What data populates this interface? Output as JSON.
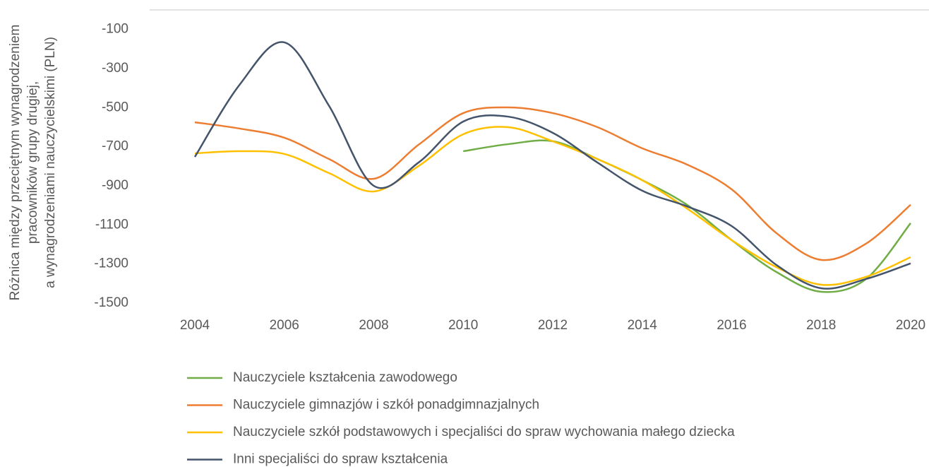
{
  "chart_data": {
    "type": "line",
    "y_label": [
      "Różnica między przeciętnym wynagrodzeniem",
      "pracowników grupy drugiej,",
      "a wynagrodzeniami nauczycielskimi (PLN)"
    ],
    "x": [
      2004,
      2005,
      2006,
      2007,
      2008,
      2009,
      2010,
      2011,
      2012,
      2013,
      2014,
      2015,
      2016,
      2017,
      2018,
      2019,
      2020
    ],
    "xlim": [
      2004,
      2020
    ],
    "xticks": [
      2004,
      2006,
      2008,
      2010,
      2012,
      2014,
      2016,
      2018,
      2020
    ],
    "ylim": [
      -1500,
      0
    ],
    "yticks": [
      -100,
      -300,
      -500,
      -700,
      -900,
      -1100,
      -1300,
      -1500
    ],
    "grid": false,
    "legend": "bottom",
    "series": [
      {
        "name": "Nauczyciele kształcenia zawodowego",
        "color": "#70ad47",
        "values": [
          null,
          null,
          null,
          null,
          null,
          null,
          -723,
          -687,
          -672,
          -763,
          -871,
          -997,
          -1178,
          -1341,
          -1442,
          -1377,
          -1091
        ]
      },
      {
        "name": "Nauczyciele gimnazjów i szkół ponadgimnazjalnych",
        "color": "#ed7d31",
        "values": [
          -575,
          -607,
          -654,
          -763,
          -864,
          -690,
          -528,
          -499,
          -528,
          -600,
          -708,
          -791,
          -918,
          -1142,
          -1279,
          -1196,
          -997
        ]
      },
      {
        "name": "Nauczyciele szkół podstawowych i specjaliści do spraw wychowania małego dziecka",
        "color": "#ffc000",
        "values": [
          -734,
          -723,
          -737,
          -835,
          -929,
          -799,
          -636,
          -600,
          -672,
          -763,
          -871,
          -1016,
          -1178,
          -1316,
          -1406,
          -1366,
          -1265
        ]
      },
      {
        "name": "Inni specjaliści do spraw kształcenia",
        "color": "#44546a",
        "values": [
          -752,
          -383,
          -166,
          -491,
          -900,
          -781,
          -571,
          -546,
          -629,
          -781,
          -925,
          -1005,
          -1106,
          -1305,
          -1424,
          -1377,
          -1297
        ]
      }
    ]
  }
}
